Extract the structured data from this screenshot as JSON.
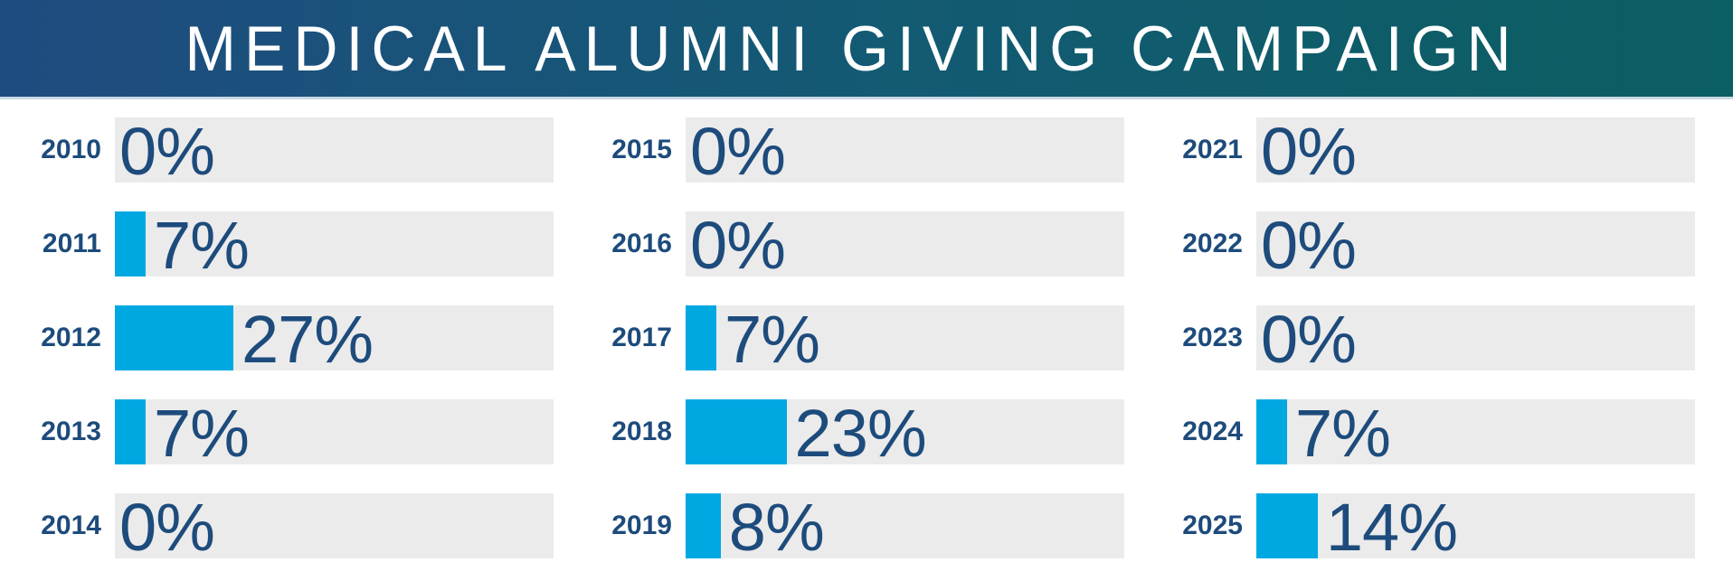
{
  "header": {
    "title": "MEDICAL ALUMNI GIVING CAMPAIGN"
  },
  "chart_data": {
    "type": "bar",
    "orientation": "horizontal",
    "title": "MEDICAL ALUMNI GIVING CAMPAIGN",
    "unit": "percent",
    "xlim": [
      0,
      100
    ],
    "grid": false,
    "legend": false,
    "categories": [
      "2010",
      "2011",
      "2012",
      "2013",
      "2014",
      "2015",
      "2016",
      "2017",
      "2018",
      "2019",
      "2021",
      "2022",
      "2023",
      "2024",
      "2025"
    ],
    "values": [
      0,
      7,
      27,
      7,
      0,
      0,
      0,
      7,
      23,
      8,
      0,
      0,
      0,
      7,
      14
    ],
    "columns": [
      {
        "rows": [
          {
            "year": "2010",
            "value": 0,
            "display": "0%"
          },
          {
            "year": "2011",
            "value": 7,
            "display": "7%"
          },
          {
            "year": "2012",
            "value": 27,
            "display": "27%"
          },
          {
            "year": "2013",
            "value": 7,
            "display": "7%"
          },
          {
            "year": "2014",
            "value": 0,
            "display": "0%"
          }
        ]
      },
      {
        "rows": [
          {
            "year": "2015",
            "value": 0,
            "display": "0%"
          },
          {
            "year": "2016",
            "value": 0,
            "display": "0%"
          },
          {
            "year": "2017",
            "value": 7,
            "display": "7%"
          },
          {
            "year": "2018",
            "value": 23,
            "display": "23%"
          },
          {
            "year": "2019",
            "value": 8,
            "display": "8%"
          }
        ]
      },
      {
        "rows": [
          {
            "year": "2021",
            "value": 0,
            "display": "0%"
          },
          {
            "year": "2022",
            "value": 0,
            "display": "0%"
          },
          {
            "year": "2023",
            "value": 0,
            "display": "0%"
          },
          {
            "year": "2024",
            "value": 7,
            "display": "7%"
          },
          {
            "year": "2025",
            "value": 14,
            "display": "14%"
          }
        ]
      }
    ],
    "colors": {
      "bar_fill": "#00a8e2",
      "bar_track": "#ebebeb",
      "text_navy": "#1d4b7c",
      "header_gradient_left": "#1f4c80",
      "header_gradient_right": "#0b5e61",
      "header_title_text": "#ffffff",
      "header_bottom_rule": "#c9d8e3"
    }
  }
}
